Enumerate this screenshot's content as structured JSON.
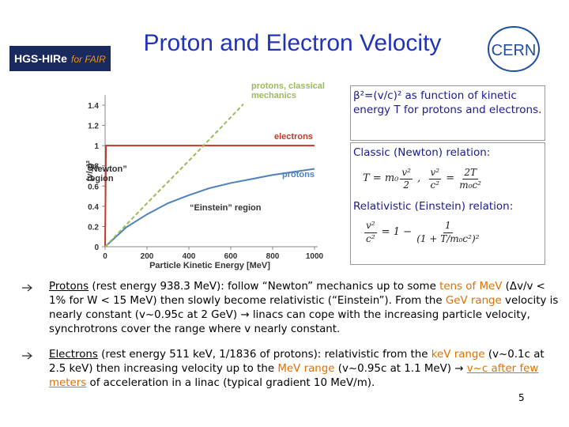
{
  "title": "Proton and Electron Velocity",
  "logos": {
    "left": [
      "HGS-HIRe",
      "for FAIR"
    ],
    "right": "CERN"
  },
  "chart_data": {
    "type": "line",
    "x_label": "Particle Kinetic Energy [MeV]",
    "y_label": "(v/c)²",
    "xlim": [
      0,
      1000
    ],
    "ylim": [
      0,
      1.5
    ],
    "xticks": [
      0,
      200,
      400,
      600,
      800,
      1000
    ],
    "yticks": [
      0,
      0.2,
      0.4,
      0.6,
      0.8,
      1,
      1.2,
      1.4
    ],
    "grid": false,
    "series": [
      {
        "name": "electrons",
        "color": "#c0392b",
        "dash": false,
        "x": [
          0,
          4,
          1000
        ],
        "values": [
          0,
          1,
          1
        ]
      },
      {
        "name": "protons",
        "color": "#4f81bd",
        "dash": false,
        "x": [
          0,
          100,
          200,
          300,
          400,
          500,
          600,
          700,
          800,
          900,
          1000
        ],
        "values": [
          0,
          0.19,
          0.32,
          0.43,
          0.51,
          0.58,
          0.63,
          0.67,
          0.71,
          0.74,
          0.77
        ]
      },
      {
        "name": "protons, classical mechanics",
        "color": "#9bbb59",
        "dash": true,
        "x": [
          0,
          200,
          400,
          600,
          660
        ],
        "values": [
          0,
          0.43,
          0.85,
          1.28,
          1.41
        ]
      }
    ],
    "annotations": [
      {
        "lines": [
          "protons, classical",
          "mechanics"
        ],
        "color": "#9bbb59"
      },
      {
        "lines": [
          "electrons"
        ],
        "color": "#c0392b"
      },
      {
        "lines": [
          "protons"
        ],
        "color": "#4f81bd"
      },
      {
        "lines": [
          "“Newton”",
          "region"
        ],
        "color": "#333333"
      },
      {
        "lines": [
          "“Einstein” region"
        ],
        "color": "#333333"
      }
    ]
  },
  "box1": "β²=(v/c)² as function of kinetic energy T for protons and electrons.",
  "box2": {
    "classic": "Classic (Newton) relation:",
    "classic_formula": [
      "T = m₀",
      [
        "v²",
        "2"
      ],
      " ,  ",
      [
        "v²",
        "c²"
      ],
      " = ",
      [
        "2T",
        "m₀c²"
      ]
    ],
    "relativistic": "Relativistic (Einstein) relation:",
    "relativistic_formula": [
      [
        "v²",
        "c²"
      ],
      " = 1 − ",
      [
        "1",
        "(1 + T/m₀c²)²"
      ]
    ]
  },
  "bullets": [
    [
      {
        "text": "Protons",
        "style": "u"
      },
      {
        "text": " (rest energy 938.3 MeV): follow “Newton” mechanics up to some ",
        "style": ""
      },
      {
        "text": "tens of MeV",
        "style": "o"
      },
      {
        "text": " (Δv/v < 1% for W < 15 MeV) then slowly become relativistic (“Einstein”). From the ",
        "style": ""
      },
      {
        "text": "GeV range",
        "style": "o"
      },
      {
        "text": " velocity is nearly constant (v~0.95c at 2 GeV) → linacs can cope with the increasing particle velocity, synchrotrons cover the range where v nearly constant.",
        "style": ""
      }
    ],
    [
      {
        "text": "Electrons",
        "style": "u"
      },
      {
        "text": " (rest energy 511 keV, 1/1836 of protons): relativistic from the ",
        "style": ""
      },
      {
        "text": "keV range",
        "style": "o"
      },
      {
        "text": " (v~0.1c at 2.5 keV) then increasing velocity up to the ",
        "style": ""
      },
      {
        "text": "MeV range",
        "style": "o"
      },
      {
        "text": " (v~0.95c at 1.1 MeV) → ",
        "style": ""
      },
      {
        "text": "v~c after few meters",
        "style": "ou"
      },
      {
        "text": " of acceleration in a linac (typical gradient 10 MeV/m).",
        "style": ""
      }
    ]
  ],
  "page_number": "5"
}
